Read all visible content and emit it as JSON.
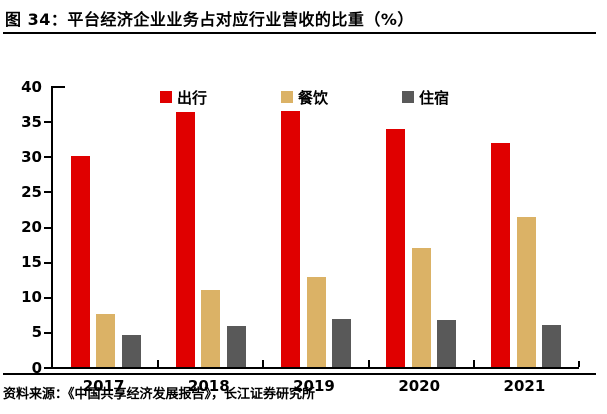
{
  "header": {
    "title": "图 34：平台经济企业业务占对应行业营收的比重（%）"
  },
  "chart_data": {
    "type": "bar",
    "title": "平台经济企业业务占对应行业营收的比重（%）",
    "figure_label": "图 34",
    "categories": [
      "2017",
      "2018",
      "2019",
      "2020",
      "2021"
    ],
    "series": [
      {
        "name": "出行",
        "color": "#e00000",
        "values": [
          30.1,
          36.3,
          36.5,
          33.9,
          31.9
        ]
      },
      {
        "name": "餐饮",
        "color": "#dbb266",
        "values": [
          7.6,
          10.9,
          12.8,
          16.9,
          21.4
        ]
      },
      {
        "name": "住宿",
        "color": "#595959",
        "values": [
          4.5,
          5.8,
          6.9,
          6.7,
          6.0
        ]
      }
    ],
    "ylim": [
      0,
      40
    ],
    "y_ticks": [
      0,
      5,
      10,
      15,
      20,
      25,
      30,
      35,
      40
    ],
    "grid": false,
    "legend_position": "top"
  },
  "footer": {
    "source": "资料来源：《中国共享经济发展报告》，长江证券研究所"
  },
  "colors": {
    "axis": "#000000",
    "text": "#000000",
    "background": "#ffffff"
  }
}
